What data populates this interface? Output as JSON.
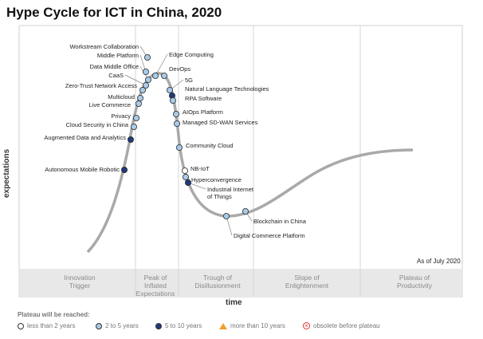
{
  "title": "Hype Cycle for ICT in China, 2020",
  "y_axis_label": "expectations",
  "x_axis_label": "time",
  "as_of": "As of July 2020",
  "phases": [
    "Innovation\nTrigger",
    "Peak of\nInflated\nExpectations",
    "Trough of\nDisillusionment",
    "Slope of\nEnlightenment",
    "Plateau of\nProductivity"
  ],
  "legend": {
    "title": "Plateau will be reached:",
    "items": [
      {
        "label": "less than 2 years",
        "symbol": "dot",
        "color": "#ffffff"
      },
      {
        "label": "2 to 5 years",
        "symbol": "dot",
        "color": "#a8cbe8"
      },
      {
        "label": "5 to 10 years",
        "symbol": "dot",
        "color": "#1f3a7a"
      },
      {
        "label": "more than 10 years",
        "symbol": "triangle",
        "color": "#f0a030"
      },
      {
        "label": "obsolete before plateau",
        "symbol": "x-circle",
        "color": "#dd3333"
      }
    ]
  },
  "technologies": [
    {
      "name": "Workstream Collaboration",
      "category": "2 to 5 years"
    },
    {
      "name": "Middle Platform",
      "category": "2 to 5 years"
    },
    {
      "name": "Data Middle Office",
      "category": "2 to 5 years"
    },
    {
      "name": "CaaS",
      "category": "2 to 5 years"
    },
    {
      "name": "Zero-Trust Network Access",
      "category": "2 to 5 years"
    },
    {
      "name": "Multicloud",
      "category": "2 to 5 years"
    },
    {
      "name": "Live Commerce",
      "category": "2 to 5 years"
    },
    {
      "name": "Privacy",
      "category": "2 to 5 years"
    },
    {
      "name": "Cloud Security in China",
      "category": "2 to 5 years"
    },
    {
      "name": "Augmented Data and Analytics",
      "category": "5 to 10 years"
    },
    {
      "name": "Autonomous Mobile Robotic",
      "category": "5 to 10 years"
    },
    {
      "name": "Edge Computing",
      "category": "2 to 5 years"
    },
    {
      "name": "DevOps",
      "category": "2 to 5 years"
    },
    {
      "name": "5G",
      "category": "2 to 5 years"
    },
    {
      "name": "Natural Language Technologies",
      "category": "5 to 10 years"
    },
    {
      "name": "RPA Software",
      "category": "2 to 5 years"
    },
    {
      "name": "AIOps Platform",
      "category": "2 to 5 years"
    },
    {
      "name": "Managed SD-WAN Services",
      "category": "2 to 5 years"
    },
    {
      "name": "Community Cloud",
      "category": "2 to 5 years"
    },
    {
      "name": "NB-IoT",
      "category": "less than 2 years"
    },
    {
      "name": "Hyperconvergence",
      "category": "2 to 5 years"
    },
    {
      "name": "Industrial Internet of Things",
      "category": "5 to 10 years"
    },
    {
      "name": "Digital Commerce Platform",
      "category": "2 to 5 years"
    },
    {
      "name": "Blockchain in China",
      "category": "2 to 5 years"
    }
  ]
}
